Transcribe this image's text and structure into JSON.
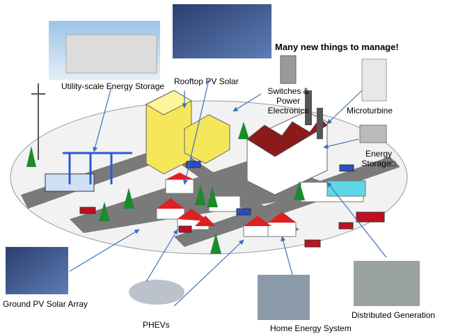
{
  "title": "Many new things to manage!",
  "labels": {
    "utility_storage": "Utility-scale Energy Storage",
    "rooftop_pv": "Rooftop PV Solar",
    "switches": "Switches & Power Electronics",
    "microturbine": "Microturbine",
    "energy_storage": "Energy Storage□",
    "ground_pv": "Ground PV Solar Array",
    "phevs": "PHEVs",
    "home_energy": "Home Energy System",
    "distributed": "Distributed Generation"
  }
}
